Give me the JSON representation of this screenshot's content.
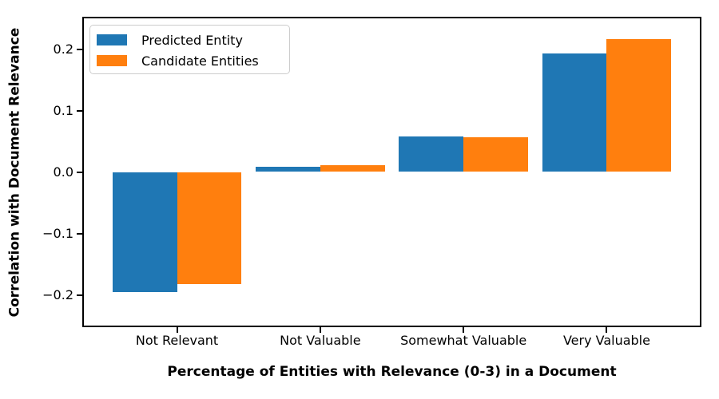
{
  "chart_data": {
    "type": "bar",
    "title": "",
    "xlabel": "Percentage of Entities with Relevance (0-3) in a Document",
    "ylabel": "Correlation with Document Relevance",
    "categories": [
      "Not Relevant",
      "Not Valuable",
      "Somewhat Valuable",
      "Very Valuable"
    ],
    "series": [
      {
        "name": "Predicted Entity",
        "color": "#1f77b4",
        "values": [
          -0.196,
          0.008,
          0.058,
          0.193
        ]
      },
      {
        "name": "Candidate Entities",
        "color": "#ff7f0e",
        "values": [
          -0.182,
          0.011,
          0.056,
          0.216
        ]
      }
    ],
    "ylim": [
      -0.25,
      0.25
    ],
    "xlim": [
      -0.65,
      3.65
    ],
    "bar_width": 0.45,
    "yticks": [
      {
        "value": 0.2,
        "label": "0.2"
      },
      {
        "value": 0.1,
        "label": "0.1"
      },
      {
        "value": 0.0,
        "label": "0.0"
      },
      {
        "value": -0.1,
        "label": "−0.1"
      },
      {
        "value": -0.2,
        "label": "−0.2"
      }
    ],
    "legend_position": "upper left",
    "grid": false,
    "background_color": "#ffffff",
    "spine_color": "#000000"
  }
}
